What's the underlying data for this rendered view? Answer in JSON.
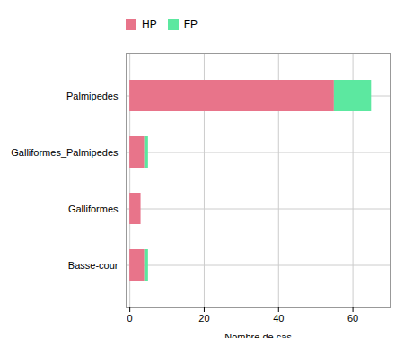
{
  "chart_data": {
    "type": "bar",
    "orientation": "horizontal",
    "stacked": true,
    "categories": [
      "Palmipedes",
      "Galliformes_Palmipedes",
      "Galliformes",
      "Basse-cour"
    ],
    "series": [
      {
        "name": "HP",
        "color": "#e8748a",
        "values": [
          55,
          4,
          3,
          4
        ]
      },
      {
        "name": "FP",
        "color": "#5ce8a0",
        "values": [
          10,
          1,
          0,
          1
        ]
      }
    ],
    "xlabel": "Nombre de cas",
    "xlim": [
      -1,
      70
    ],
    "xticks": [
      0,
      20,
      40,
      60
    ],
    "grid": true,
    "legend": "top"
  }
}
